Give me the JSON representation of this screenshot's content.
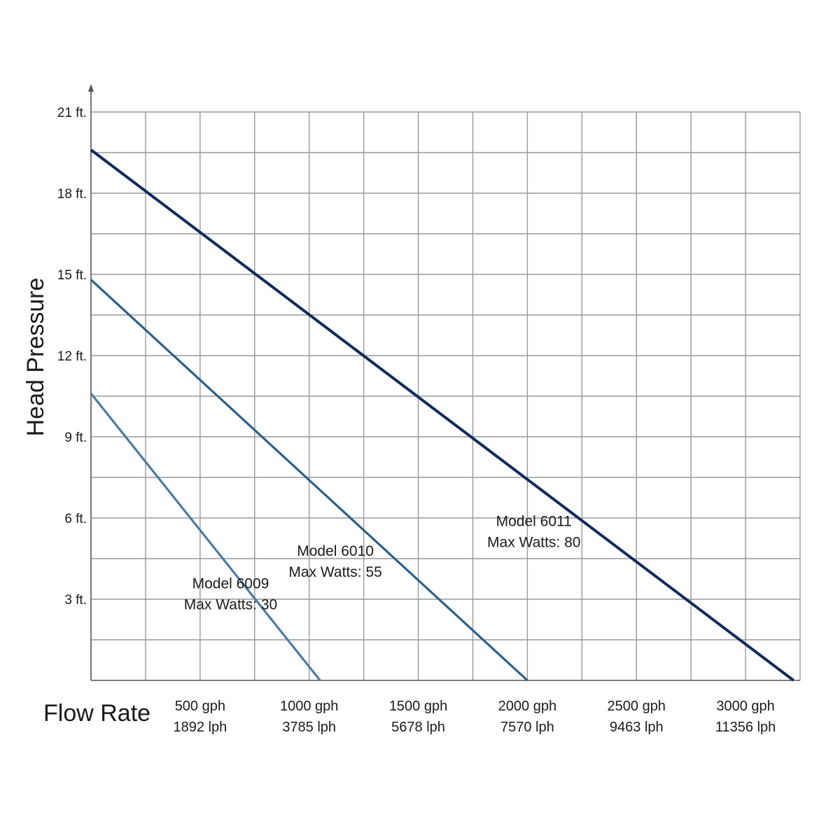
{
  "chart_data": {
    "type": "line",
    "title": "",
    "xlabel": "Flow Rate",
    "ylabel": "Head Pressure",
    "xlim": [
      0,
      3250
    ],
    "ylim": [
      0,
      21
    ],
    "grid": true,
    "y_ticks": [
      {
        "value": 3,
        "label": "3 ft."
      },
      {
        "value": 6,
        "label": "6 ft."
      },
      {
        "value": 9,
        "label": "9 ft."
      },
      {
        "value": 12,
        "label": "12 ft."
      },
      {
        "value": 15,
        "label": "15 ft."
      },
      {
        "value": 18,
        "label": "18 ft."
      },
      {
        "value": 21,
        "label": "21 ft."
      }
    ],
    "x_ticks": [
      {
        "value": 500,
        "gph": "500 gph",
        "lph": "1892 lph"
      },
      {
        "value": 1000,
        "gph": "1000 gph",
        "lph": "3785 lph"
      },
      {
        "value": 1500,
        "gph": "1500 gph",
        "lph": "5678 lph"
      },
      {
        "value": 2000,
        "gph": "2000 gph",
        "lph": "7570 lph"
      },
      {
        "value": 2500,
        "gph": "2500 gph",
        "lph": "9463 lph"
      },
      {
        "value": 3000,
        "gph": "3000 gph",
        "lph": "11356 lph"
      }
    ],
    "series": [
      {
        "name": "Model 6009",
        "subtitle": "Max Watts: 30",
        "color": "#4a7ba6",
        "x": [
          0,
          1050
        ],
        "y": [
          10.6,
          0
        ],
        "label_anchor": {
          "x": 640,
          "y": 3.4
        }
      },
      {
        "name": "Model 6010",
        "subtitle": "Max Watts: 55",
        "color": "#2c5f8a",
        "x": [
          0,
          2000
        ],
        "y": [
          14.8,
          0
        ],
        "label_anchor": {
          "x": 1120,
          "y": 4.6
        }
      },
      {
        "name": "Model 6011",
        "subtitle": "Max Watts: 80",
        "color": "#0f2a5c",
        "x": [
          0,
          3220
        ],
        "y": [
          19.6,
          0
        ],
        "label_anchor": {
          "x": 2030,
          "y": 5.7
        }
      }
    ]
  }
}
